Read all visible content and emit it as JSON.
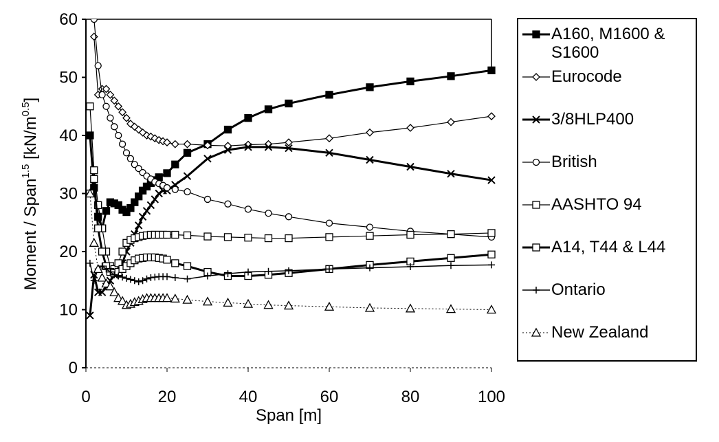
{
  "chart_data": {
    "type": "line",
    "xlabel": "Span [m]",
    "ylabel": [
      "Moment / Span",
      "1.5",
      " [kN/m",
      "0.5",
      "]"
    ],
    "xlim": [
      0,
      100
    ],
    "xticks": [
      0,
      20,
      40,
      60,
      80,
      100
    ],
    "ylim": [
      0,
      60
    ],
    "yticks": [
      0,
      10,
      20,
      30,
      40,
      50,
      60
    ],
    "legend": "right",
    "series": [
      {
        "name": "A160, M1600 & S1600",
        "color": "#000000",
        "marker": "filled-square",
        "width": 3,
        "x": [
          1,
          2,
          3,
          4,
          5,
          6,
          7,
          8,
          9,
          10,
          11,
          12,
          13,
          14,
          15,
          16,
          17,
          18,
          20,
          22,
          25,
          30,
          35,
          40,
          45,
          50,
          60,
          70,
          80,
          90,
          100
        ],
        "values": [
          40,
          31,
          26,
          24,
          27,
          28.5,
          28.3,
          28,
          27.2,
          26.8,
          27.5,
          28.5,
          29.5,
          30.5,
          31.2,
          31.8,
          32.3,
          32.8,
          33.5,
          35,
          37,
          38.5,
          41,
          43,
          44.5,
          45.5,
          47,
          48.3,
          49.3,
          50.2,
          51.2
        ]
      },
      {
        "name": "Eurocode",
        "color": "#000000",
        "marker": "diamond",
        "width": 1.2,
        "x": [
          2,
          3,
          4,
          5,
          6,
          7,
          8,
          9,
          10,
          11,
          12,
          13,
          14,
          15,
          16,
          17,
          18,
          19,
          20,
          22,
          25,
          30,
          35,
          40,
          45,
          50,
          60,
          70,
          80,
          90,
          100
        ],
        "values": [
          57,
          47,
          48,
          48,
          47,
          46,
          45,
          44,
          43,
          42,
          41.5,
          41,
          40.5,
          40,
          39.8,
          39.5,
          39.2,
          39,
          38.8,
          38.5,
          38.5,
          38.3,
          38.2,
          38.4,
          38.5,
          38.8,
          39.5,
          40.5,
          41.3,
          42.3,
          43.3
        ]
      },
      {
        "name": "3/8HLP400",
        "color": "#000000",
        "marker": "cross",
        "width": 3,
        "x": [
          1,
          2,
          3,
          4,
          5,
          6,
          7,
          8,
          9,
          10,
          11,
          12,
          13,
          14,
          15,
          16,
          17,
          18,
          19,
          20,
          22,
          25,
          30,
          35,
          40,
          45,
          50,
          60,
          70,
          80,
          90,
          100
        ],
        "values": [
          9,
          16,
          13,
          13,
          14,
          15,
          16,
          17,
          18,
          20,
          21.5,
          23,
          24.5,
          26,
          27,
          28,
          29,
          30,
          30.5,
          30.5,
          31.5,
          33,
          36,
          37.5,
          38,
          38,
          37.8,
          37,
          35.8,
          34.6,
          33.4,
          32.3
        ]
      },
      {
        "name": "British",
        "color": "#000000",
        "marker": "circle",
        "width": 1.2,
        "x": [
          2,
          3,
          4,
          5,
          6,
          7,
          8,
          9,
          10,
          11,
          12,
          13,
          14,
          15,
          16,
          17,
          18,
          19,
          20,
          22,
          25,
          30,
          35,
          40,
          45,
          50,
          60,
          70,
          80,
          90,
          100
        ],
        "values": [
          60,
          52,
          47,
          45,
          43,
          41.5,
          40,
          38.5,
          37,
          36,
          35,
          34.3,
          33.6,
          33,
          32.5,
          32,
          31.7,
          31.4,
          31,
          30.7,
          30.3,
          29,
          28.2,
          27.3,
          26.6,
          26,
          24.9,
          24.2,
          23.5,
          23,
          22.5
        ]
      },
      {
        "name": "AASHTO 94",
        "color": "#000000",
        "marker": "square",
        "width": 1.2,
        "x": [
          1,
          2,
          3,
          4,
          5,
          6,
          7,
          8,
          9,
          10,
          11,
          12,
          13,
          14,
          15,
          16,
          17,
          18,
          19,
          20,
          22,
          25,
          30,
          35,
          40,
          45,
          50,
          60,
          70,
          80,
          90,
          100
        ],
        "values": [
          45,
          34,
          28,
          24,
          20,
          17.5,
          17,
          18,
          20,
          21.5,
          22,
          22.3,
          22.5,
          22.7,
          22.8,
          22.9,
          22.9,
          22.9,
          22.9,
          22.9,
          22.9,
          22.8,
          22.6,
          22.5,
          22.4,
          22.3,
          22.3,
          22.5,
          22.7,
          22.9,
          23,
          23.2
        ]
      },
      {
        "name": "A14, T44 & L44",
        "color": "#000000",
        "marker": "square",
        "width": 3,
        "x": [
          1,
          2,
          3,
          4,
          5,
          6,
          7,
          8,
          9,
          10,
          11,
          12,
          13,
          14,
          15,
          16,
          17,
          18,
          19,
          20,
          22,
          25,
          30,
          35,
          40,
          45,
          50,
          60,
          70,
          80,
          90,
          100
        ],
        "values": [
          30,
          32.5,
          24,
          20,
          17.5,
          16.5,
          16.3,
          16.5,
          17,
          17.5,
          18,
          18.5,
          18.8,
          18.9,
          19,
          19,
          19,
          18.9,
          18.8,
          18.6,
          18,
          17.5,
          16.5,
          15.8,
          15.8,
          16,
          16.3,
          17,
          17.7,
          18.3,
          18.9,
          19.5
        ]
      },
      {
        "name": "Ontario",
        "color": "#000000",
        "marker": "plus",
        "width": 1.5,
        "x": [
          1,
          2,
          3,
          4,
          5,
          6,
          7,
          8,
          9,
          10,
          11,
          12,
          13,
          14,
          15,
          16,
          17,
          18,
          19,
          20,
          22,
          25,
          30,
          35,
          40,
          45,
          50,
          60,
          70,
          80,
          90,
          100
        ],
        "values": [
          18,
          15,
          17,
          17.5,
          17,
          16.5,
          16,
          15.8,
          15.6,
          15.4,
          15.2,
          15,
          14.8,
          15,
          15.3,
          15.5,
          15.6,
          15.7,
          15.7,
          15.7,
          15.5,
          15.3,
          15.8,
          16.2,
          16.5,
          16.6,
          16.7,
          17,
          17.2,
          17.4,
          17.6,
          17.7
        ]
      },
      {
        "name": "New Zealand",
        "color": "#000000",
        "marker": "triangle",
        "width": 1,
        "dash": true,
        "x": [
          1,
          2,
          3,
          4,
          5,
          6,
          7,
          8,
          9,
          10,
          11,
          12,
          13,
          14,
          15,
          16,
          17,
          18,
          19,
          20,
          22,
          25,
          30,
          35,
          40,
          45,
          50,
          60,
          70,
          80,
          90,
          100
        ],
        "values": [
          30,
          21.5,
          17,
          15.5,
          14.5,
          14,
          13,
          12,
          11.5,
          10.8,
          11,
          11.3,
          11.5,
          11.8,
          12,
          12,
          12,
          12,
          12,
          12,
          11.9,
          11.7,
          11.4,
          11.2,
          11,
          10.8,
          10.7,
          10.5,
          10.3,
          10.2,
          10.1,
          10
        ]
      }
    ]
  }
}
